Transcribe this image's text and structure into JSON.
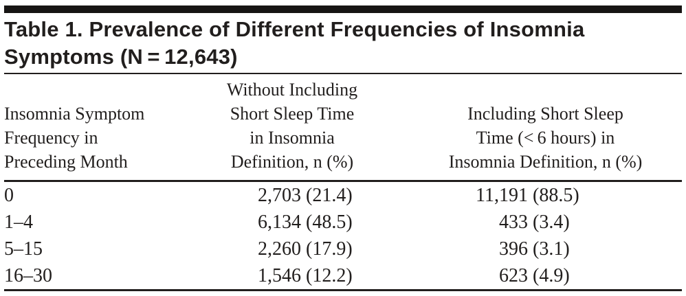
{
  "document": {
    "title_lines": [
      "Table 1. Prevalence of Different Frequencies of Insomnia",
      "Symptoms (N = 12,643)"
    ]
  },
  "table": {
    "header": {
      "col1_lines": [
        "Insomnia Symptom",
        "Frequency in",
        "Preceding Month"
      ],
      "col2_lines": [
        "Without Including",
        "Short Sleep Time",
        "in Insomnia",
        "Definition, n (%)"
      ],
      "col3_lines": [
        "Including Short Sleep",
        "Time (< 6 hours) in",
        "Insomnia Definition, n (%)"
      ]
    },
    "rows": [
      {
        "frequency": "0",
        "without_n": "2,703",
        "without_pct": "(21.4)",
        "including_n": "11,191",
        "including_pct": "(88.5)"
      },
      {
        "frequency": "1–4",
        "without_n": "6,134",
        "without_pct": "(48.5)",
        "including_n": "433",
        "including_pct": "(3.4)"
      },
      {
        "frequency": "5–15",
        "without_n": "2,260",
        "without_pct": "(17.9)",
        "including_n": "396",
        "including_pct": "(3.1)"
      },
      {
        "frequency": "16–30",
        "without_n": "1,546",
        "without_pct": "(12.2)",
        "including_n": "623",
        "including_pct": "(4.9)"
      }
    ]
  },
  "colors": {
    "ink": "#211e1d",
    "top_bar": "#171514",
    "background": "#ffffff"
  }
}
